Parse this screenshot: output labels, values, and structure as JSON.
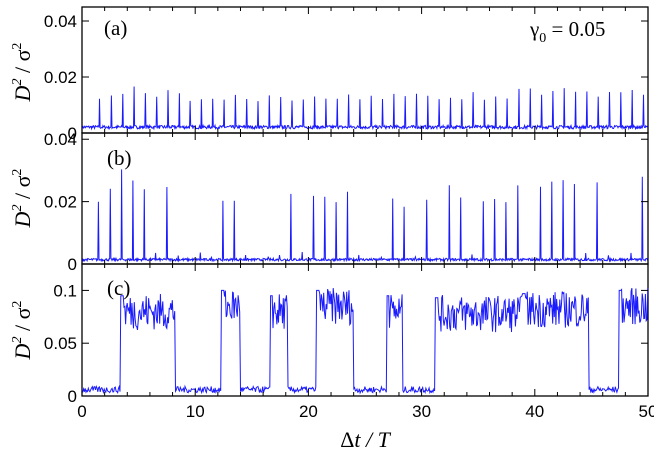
{
  "figure": {
    "annotation": "γ",
    "annotation_sub": "0",
    "annotation_value": " = 0.05",
    "ylabel_base": "D",
    "ylabel_exp": "2",
    "ylabel_sep": " / ",
    "ylabel_den": "σ",
    "ylabel_den_exp": "2",
    "xlabel_delta": "Δ",
    "xlabel_rest": "t / T"
  },
  "colors": {
    "line": "#1a1aff",
    "axes": "#000000"
  },
  "chart_data": [
    {
      "type": "line",
      "panel_label": "(a)",
      "xlim": [
        0,
        50
      ],
      "ylim": [
        0,
        0.045
      ],
      "yticks": [
        0,
        0.02,
        0.04
      ],
      "ytick_labels": [
        "0",
        "0.02",
        "0.04"
      ],
      "grid": false,
      "series": [
        {
          "period": 1,
          "start": 0.6,
          "high_from": 0,
          "high_to": 0.4,
          "baseline": 0.0015,
          "levels": [
            0.018,
            0.016,
            0.015,
            0.016,
            0.018,
            0.016,
            0.015,
            0.017,
            0.016,
            0.015,
            0.016,
            0.017,
            0.016,
            0.018,
            0.017,
            0.016,
            0.018,
            0.017,
            0.016,
            0.017,
            0.018,
            0.016,
            0.017,
            0.019,
            0.017,
            0.018,
            0.017,
            0.019,
            0.018,
            0.02,
            0.018,
            0.017,
            0.018,
            0.017,
            0.019,
            0.017,
            0.018,
            0.016,
            0.017,
            0.018,
            0.016,
            0.017,
            0.018,
            0.016,
            0.017,
            0.015,
            0.017,
            0.016,
            0.018,
            0.016
          ]
        }
      ]
    },
    {
      "type": "line",
      "panel_label": "(b)",
      "xlim": [
        0,
        50
      ],
      "ylim": [
        0,
        0.042
      ],
      "yticks": [
        0,
        0.02,
        0.04
      ],
      "ytick_labels": [
        "0",
        "0.02",
        "0.04"
      ],
      "grid": false,
      "series": [
        {
          "period": 1,
          "start": 0.5,
          "high_from": 0,
          "high_to": 0.45,
          "baseline": 0.001,
          "levels": [
            0.032,
            0.028,
            0.026,
            0.034,
            0.03,
            0.028,
            0.004,
            0.028,
            0.003,
            0.002,
            0.005,
            0.003,
            0.026,
            0.029,
            0.004,
            0.002,
            0.003,
            0.004,
            0.03,
            0.005,
            0.029,
            0.028,
            0.026,
            0.03,
            0.004,
            0.002,
            0.003,
            0.029,
            0.026,
            0.003,
            0.028,
            0.002,
            0.033,
            0.03,
            0.004,
            0.026,
            0.029,
            0.027,
            0.028,
            0.002,
            0.029,
            0.029,
            0.03,
            0.028,
            0.004,
            0.029,
            0.003,
            0.002,
            0.004,
            0.031
          ]
        }
      ]
    },
    {
      "type": "line",
      "panel_label": "(c)",
      "xlim": [
        0,
        50
      ],
      "ylim": [
        0,
        0.125
      ],
      "yticks": [
        0,
        0.05,
        0.1
      ],
      "ytick_labels": [
        "0",
        "0.05",
        "0.1"
      ],
      "grid": false,
      "series": [
        {
          "baseline": 0.003,
          "segments": [
            {
              "x0": 0.0,
              "x1": 3.4,
              "level": 0.003
            },
            {
              "x0": 3.4,
              "x1": 8.2,
              "level": 0.08
            },
            {
              "x0": 8.2,
              "x1": 12.3,
              "level": 0.003
            },
            {
              "x0": 12.3,
              "x1": 14.0,
              "level": 0.085
            },
            {
              "x0": 14.0,
              "x1": 16.6,
              "level": 0.003
            },
            {
              "x0": 16.6,
              "x1": 18.2,
              "level": 0.08
            },
            {
              "x0": 18.2,
              "x1": 20.7,
              "level": 0.003
            },
            {
              "x0": 20.7,
              "x1": 24.0,
              "level": 0.085
            },
            {
              "x0": 24.0,
              "x1": 26.9,
              "level": 0.003
            },
            {
              "x0": 26.9,
              "x1": 28.3,
              "level": 0.08
            },
            {
              "x0": 28.3,
              "x1": 31.2,
              "level": 0.003
            },
            {
              "x0": 31.2,
              "x1": 38.9,
              "level": 0.078
            },
            {
              "x0": 38.9,
              "x1": 44.8,
              "level": 0.082
            },
            {
              "x0": 44.8,
              "x1": 47.4,
              "level": 0.003
            },
            {
              "x0": 47.4,
              "x1": 50.0,
              "level": 0.085
            }
          ]
        }
      ],
      "xticks": [
        0,
        10,
        20,
        30,
        40,
        50
      ],
      "xtick_labels": [
        "0",
        "10",
        "20",
        "30",
        "40",
        "50"
      ]
    }
  ]
}
